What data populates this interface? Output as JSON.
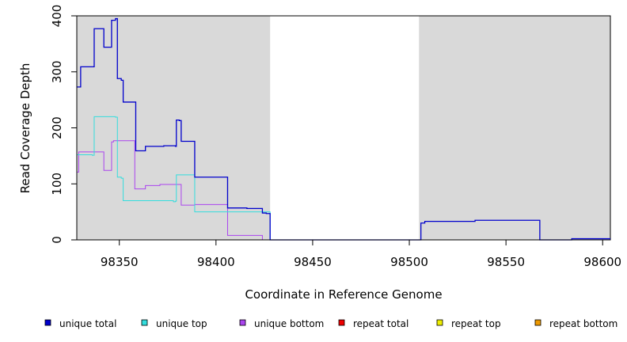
{
  "chart_data": {
    "type": "line",
    "xlabel": "Coordinate in Reference Genome",
    "ylabel": "Read Coverage Depth",
    "xlim": [
      98328,
      98604
    ],
    "ylim": [
      0,
      400
    ],
    "x_ticks": [
      98350,
      98400,
      98450,
      98500,
      98550,
      98600
    ],
    "y_ticks": [
      0,
      100,
      200,
      300,
      400
    ],
    "shaded_regions": [
      [
        98328,
        98428
      ],
      [
        98505,
        98604
      ]
    ],
    "shade_color": "#d9d9d9",
    "grid": false,
    "legend_position": "bottom",
    "series": [
      {
        "name": "unique total",
        "color": "#0000cc",
        "steps": [
          [
            98328,
            273
          ],
          [
            98330,
            309
          ],
          [
            98336,
            309
          ],
          [
            98337,
            377
          ],
          [
            98341,
            377
          ],
          [
            98342,
            344
          ],
          [
            98345,
            344
          ],
          [
            98346,
            392
          ],
          [
            98348,
            395
          ],
          [
            98349,
            288
          ],
          [
            98351,
            285
          ],
          [
            98352,
            246
          ],
          [
            98358,
            246
          ],
          [
            98358.5,
            159
          ],
          [
            98363,
            159
          ],
          [
            98363.5,
            167
          ],
          [
            98372,
            167
          ],
          [
            98373,
            168
          ],
          [
            98379,
            167
          ],
          [
            98379.5,
            214
          ],
          [
            98381,
            213
          ],
          [
            98382,
            176
          ],
          [
            98388,
            176
          ],
          [
            98389,
            112
          ],
          [
            98405,
            112
          ],
          [
            98406,
            57
          ],
          [
            98415,
            57
          ],
          [
            98416,
            56
          ],
          [
            98423,
            56
          ],
          [
            98424,
            48
          ],
          [
            98426,
            47
          ],
          [
            98428,
            0
          ],
          [
            98505,
            0
          ],
          [
            98506,
            30
          ],
          [
            98508,
            33
          ],
          [
            98532,
            33
          ],
          [
            98534,
            35
          ],
          [
            98567,
            35
          ],
          [
            98567.5,
            0
          ],
          [
            98583,
            0
          ],
          [
            98584,
            2
          ],
          [
            98604,
            2
          ]
        ]
      },
      {
        "name": "unique top",
        "color": "#33dddd",
        "steps": [
          [
            98328,
            152
          ],
          [
            98329,
            152
          ],
          [
            98336,
            151
          ],
          [
            98337,
            220
          ],
          [
            98348,
            219
          ],
          [
            98349,
            112
          ],
          [
            98351,
            110
          ],
          [
            98352,
            70
          ],
          [
            98377,
            70
          ],
          [
            98378,
            68
          ],
          [
            98379,
            69
          ],
          [
            98379.5,
            116
          ],
          [
            98388,
            116
          ],
          [
            98389,
            50
          ],
          [
            98426,
            50
          ],
          [
            98428,
            0
          ],
          [
            98604,
            0
          ]
        ]
      },
      {
        "name": "unique bottom",
        "color": "#aa44ee",
        "steps": [
          [
            98328,
            121
          ],
          [
            98329,
            157
          ],
          [
            98341,
            157
          ],
          [
            98342,
            124
          ],
          [
            98345,
            124
          ],
          [
            98346,
            175
          ],
          [
            98347,
            177
          ],
          [
            98357,
            177
          ],
          [
            98358,
            91
          ],
          [
            98363,
            91
          ],
          [
            98363.5,
            97
          ],
          [
            98370,
            97
          ],
          [
            98371,
            99
          ],
          [
            98381,
            99
          ],
          [
            98382,
            62
          ],
          [
            98388,
            62
          ],
          [
            98389,
            63
          ],
          [
            98405,
            63
          ],
          [
            98406,
            8
          ],
          [
            98423,
            8
          ],
          [
            98424,
            0
          ],
          [
            98604,
            0
          ]
        ]
      },
      {
        "name": "repeat total",
        "color": "#ee0000",
        "steps": [
          [
            98328,
            0
          ],
          [
            98604,
            0
          ]
        ]
      },
      {
        "name": "repeat top",
        "color": "#eeee00",
        "steps": [
          [
            98328,
            0
          ],
          [
            98604,
            0
          ]
        ]
      },
      {
        "name": "repeat bottom",
        "color": "#ee9900",
        "steps": [
          [
            98328,
            0
          ],
          [
            98604,
            0
          ]
        ]
      }
    ]
  }
}
